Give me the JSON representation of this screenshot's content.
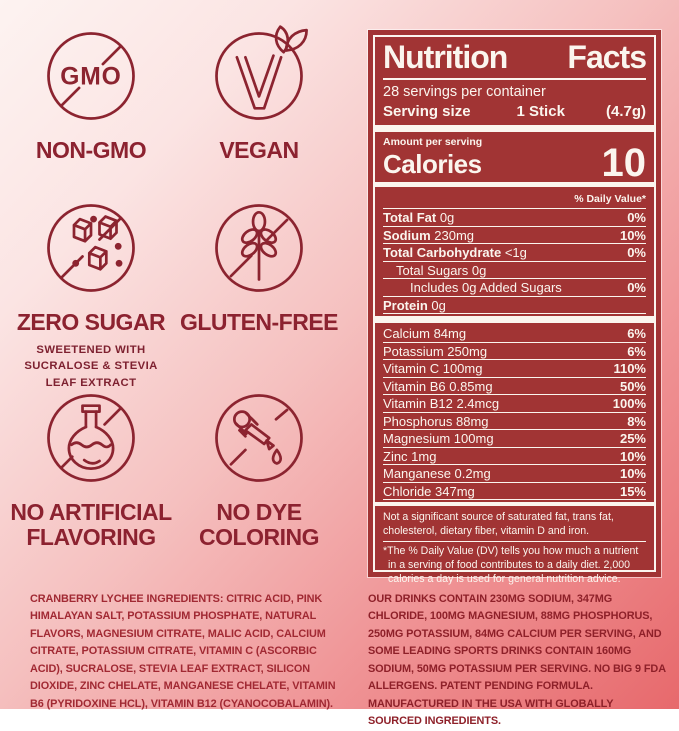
{
  "badges": [
    {
      "icon": "non-gmo-icon",
      "label": "NON-GMO"
    },
    {
      "icon": "vegan-icon",
      "label": "VEGAN"
    },
    {
      "icon": "zero-sugar-icon",
      "label": "ZERO SUGAR",
      "sub": "SWEETENED WITH SUCRALOSE & STEVIA LEAF EXTRACT"
    },
    {
      "icon": "gluten-free-icon",
      "label": "GLUTEN-FREE"
    },
    {
      "icon": "no-artificial-flavoring-icon",
      "label": "NO ARTIFICIAL FLAVORING"
    },
    {
      "icon": "no-dye-coloring-icon",
      "label": "NO DYE COLORING"
    }
  ],
  "nutrition": {
    "title_word1": "Nutrition",
    "title_word2": "Facts",
    "servings_per_container": "28 servings per container",
    "serving_size_label": "Serving size",
    "serving_size_value": "1 Stick",
    "serving_size_weight": "(4.7g)",
    "amount_per_serving": "Amount per serving",
    "calories_label": "Calories",
    "calories_value": "10",
    "daily_value_header": "% Daily Value*",
    "rows": [
      {
        "name": "Total Fat",
        "amount": "0g",
        "dv": "0%",
        "bold": true,
        "indent": 0
      },
      {
        "name": "Sodium",
        "amount": "230mg",
        "dv": "10%",
        "bold": true,
        "indent": 0
      },
      {
        "name": "Total Carbohydrate",
        "amount": "<1g",
        "dv": "0%",
        "bold": true,
        "indent": 0
      },
      {
        "name": "Total Sugars",
        "amount": "0g",
        "dv": "",
        "bold": false,
        "indent": 1
      },
      {
        "name": "Includes 0g Added Sugars",
        "amount": "",
        "dv": "0%",
        "bold": false,
        "indent": 2
      },
      {
        "name": "Protein",
        "amount": "0g",
        "dv": "",
        "bold": true,
        "indent": 0
      }
    ],
    "micronutrients": [
      {
        "name": "Calcium 84mg",
        "dv": "6%"
      },
      {
        "name": "Potassium 250mg",
        "dv": "6%"
      },
      {
        "name": "Vitamin C 100mg",
        "dv": "110%"
      },
      {
        "name": "Vitamin B6 0.85mg",
        "dv": "50%"
      },
      {
        "name": "Vitamin B12 2.4mcg",
        "dv": "100%"
      },
      {
        "name": "Phosphorus 88mg",
        "dv": "8%"
      },
      {
        "name": "Magnesium 100mg",
        "dv": "25%"
      },
      {
        "name": "Zinc 1mg",
        "dv": "10%"
      },
      {
        "name": "Manganese 0.2mg",
        "dv": "10%"
      },
      {
        "name": "Chloride 347mg",
        "dv": "15%"
      }
    ],
    "footnote1": "Not a significant source of saturated fat, trans fat, cholesterol, dietary fiber, vitamin D and iron.",
    "footnote2": "*The % Daily Value (DV) tells you how much a nutrient in a serving of food contributes to a daily diet. 2,000 calories a day is used for general nutrition advice."
  },
  "footer": {
    "ingredients": "CRANBERRY LYCHEE INGREDIENTS: CITRIC ACID, PINK HIMALAYAN SALT, POTASSIUM PHOSPHATE, NATURAL FLAVORS, MAGNESIUM CITRATE, MALIC ACID, CALCIUM CITRATE, POTASSIUM CITRATE, VITAMIN C (ASCORBIC ACID), SUCRALOSE, STEVIA LEAF EXTRACT, SILICON DIOXIDE, ZINC CHELATE, MANGANESE CHELATE, VITAMIN B6 (PYRIDOXINE HCL), VITAMIN B12 (CYANOCOBALAMIN).",
    "disclaimer": "OUR DRINKS CONTAIN 230MG SODIUM, 347MG CHLORIDE,  100MG MAGNESIUM, 88MG PHOSPHORUS, 250MG POTASSIUM, 84MG CALCIUM PER SERVING, AND SOME LEADING SPORTS DRINKS CONTAIN 160MG SODIUM, 50MG POTASSIUM PER SERVING. NO BIG 9 FDA ALLERGENS. PATENT PENDING FORMULA. MANUFACTURED IN THE USA WITH GLOBALLY SOURCED INGREDIENTS."
  },
  "colors": {
    "label_red": "#a13434",
    "label_text": "#fbf5ee",
    "maroon": "#8c2430",
    "bg_gradient_start": "#fdf3f1",
    "bg_gradient_end": "#e7696c"
  }
}
